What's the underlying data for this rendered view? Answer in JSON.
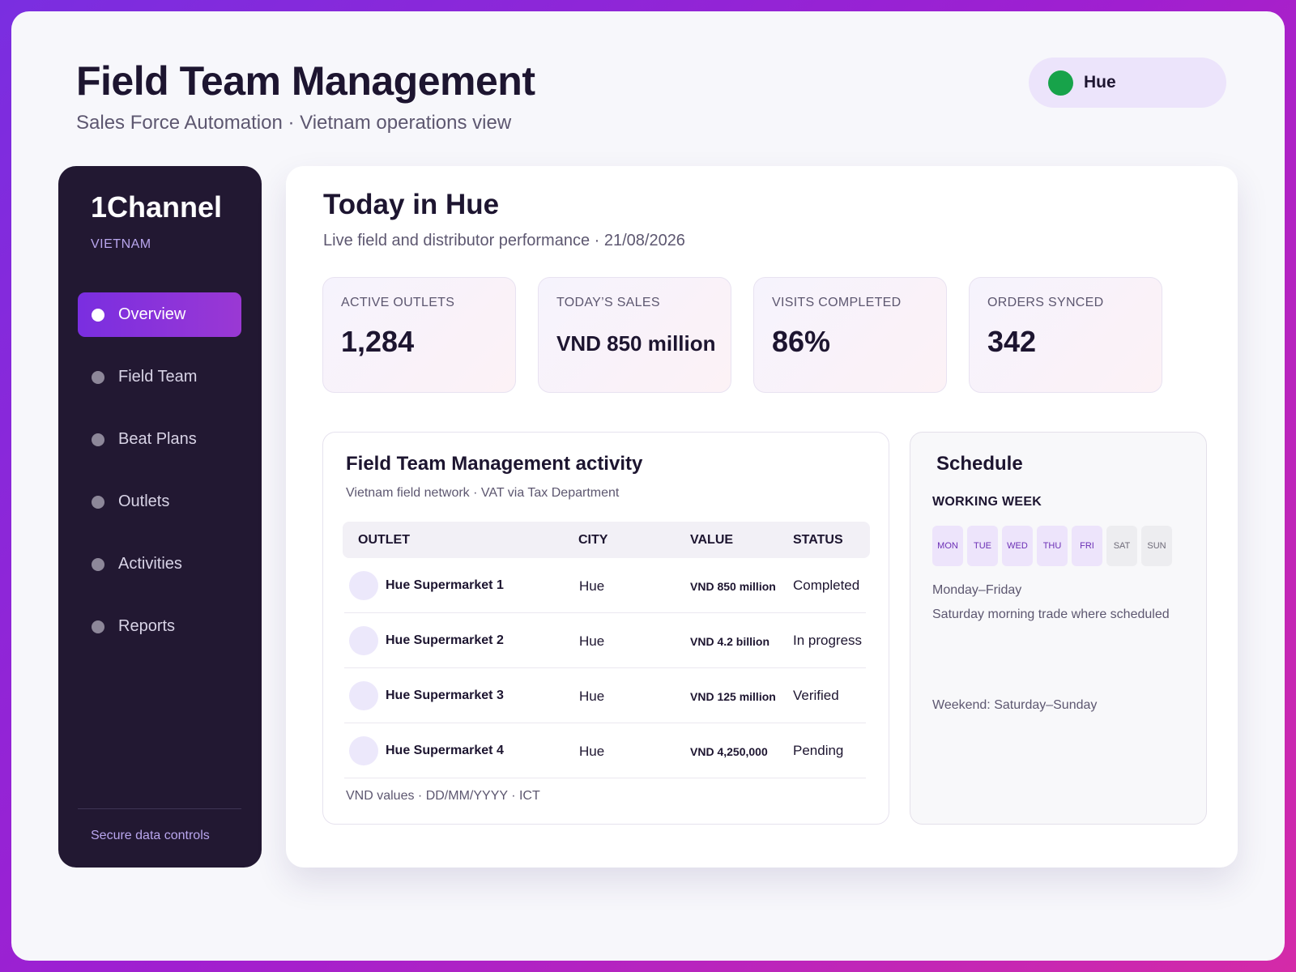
{
  "header": {
    "title": "Field Team Management",
    "subtitle": "Sales Force Automation · Vietnam operations view"
  },
  "city_selector": {
    "label": "Hue",
    "status_color": "#17a34a"
  },
  "sidebar": {
    "brand": "1Channel",
    "country": "VIETNAM",
    "items": [
      {
        "label": "Overview",
        "active": true
      },
      {
        "label": "Field Team",
        "active": false
      },
      {
        "label": "Beat Plans",
        "active": false
      },
      {
        "label": "Outlets",
        "active": false
      },
      {
        "label": "Activities",
        "active": false
      },
      {
        "label": "Reports",
        "active": false
      }
    ],
    "footer": "Secure data controls"
  },
  "main": {
    "title": "Today in Hue",
    "subtitle": "Live field and distributor performance · 21/08/2026",
    "kpis": [
      {
        "label": "ACTIVE OUTLETS",
        "value": "1,284"
      },
      {
        "label": "TODAY’S SALES",
        "value": "VND 850 million"
      },
      {
        "label": "VISITS COMPLETED",
        "value": "86%"
      },
      {
        "label": "ORDERS SYNCED",
        "value": "342"
      }
    ]
  },
  "activity": {
    "title": "Field Team Management activity",
    "subtitle": "Vietnam field network · VAT via Tax Department",
    "columns": [
      "OUTLET",
      "CITY",
      "VALUE",
      "STATUS"
    ],
    "rows": [
      {
        "outlet": "Hue Supermarket 1",
        "city": "Hue",
        "value": "VND 850 million",
        "status": "Completed"
      },
      {
        "outlet": "Hue Supermarket 2",
        "city": "Hue",
        "value": "VND 4.2 billion",
        "status": "In progress"
      },
      {
        "outlet": "Hue Supermarket 3",
        "city": "Hue",
        "value": "VND 125 million",
        "status": "Verified"
      },
      {
        "outlet": "Hue Supermarket 4",
        "city": "Hue",
        "value": "VND 4,250,000",
        "status": "Pending"
      }
    ],
    "footer": "VND values · DD/MM/YYYY · ICT"
  },
  "schedule": {
    "title": "Schedule",
    "subtitle": "WORKING WEEK",
    "days": [
      {
        "label": "MON",
        "working": true
      },
      {
        "label": "TUE",
        "working": true
      },
      {
        "label": "WED",
        "working": true
      },
      {
        "label": "THU",
        "working": true
      },
      {
        "label": "FRI",
        "working": true
      },
      {
        "label": "SAT",
        "working": false
      },
      {
        "label": "SUN",
        "working": false
      }
    ],
    "line1": "Monday–Friday",
    "line2": "Saturday morning trade where scheduled",
    "weekend": "Weekend: Saturday–Sunday"
  }
}
